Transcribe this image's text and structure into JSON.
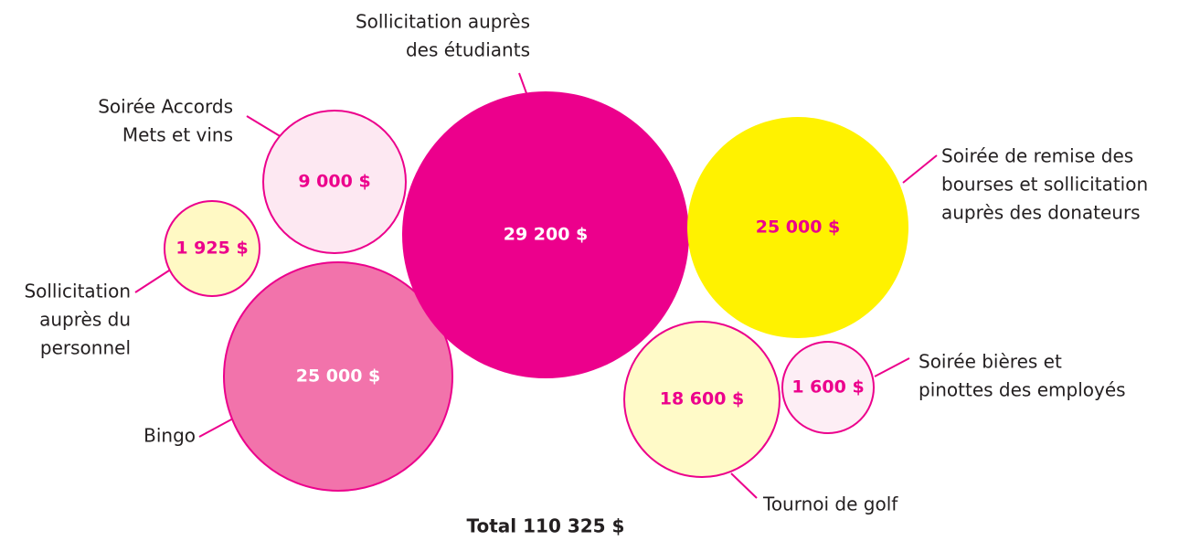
{
  "chart_data": {
    "type": "bubble",
    "categories": [
      [
        "Sollicitation auprès",
        "des étudiants"
      ],
      [
        "Soirée de remise des",
        "bourses et sollicitation",
        "auprès des donateurs"
      ],
      [
        "Soirée Accords",
        "Mets et vins"
      ],
      [
        "Sollicitation",
        "auprès du",
        "personnel"
      ],
      [
        "Bingo"
      ],
      [
        "Tournoi de golf"
      ],
      [
        "Soirée bières et",
        "pinottes des employés"
      ]
    ],
    "values": [
      29200,
      25000,
      9000,
      1925,
      25000,
      18600,
      1600
    ],
    "value_labels": [
      "29 200 $",
      "25 000 $",
      "9 000 $",
      "1 925 $",
      "25 000 $",
      "18 600 $",
      "1 600 $"
    ],
    "colors": [
      "#ec008c",
      "#fff200",
      "#fde8f2",
      "#fff9c4",
      "#f273ab",
      "#fffac8",
      "#fdeef5"
    ],
    "label_colors": [
      "#ffffff",
      "#ec008c",
      "#ec008c",
      "#ec008c",
      "#ffffff",
      "#ec008c",
      "#ec008c"
    ],
    "outline_color": "#ec008c",
    "total": "Total 110 325 $"
  }
}
